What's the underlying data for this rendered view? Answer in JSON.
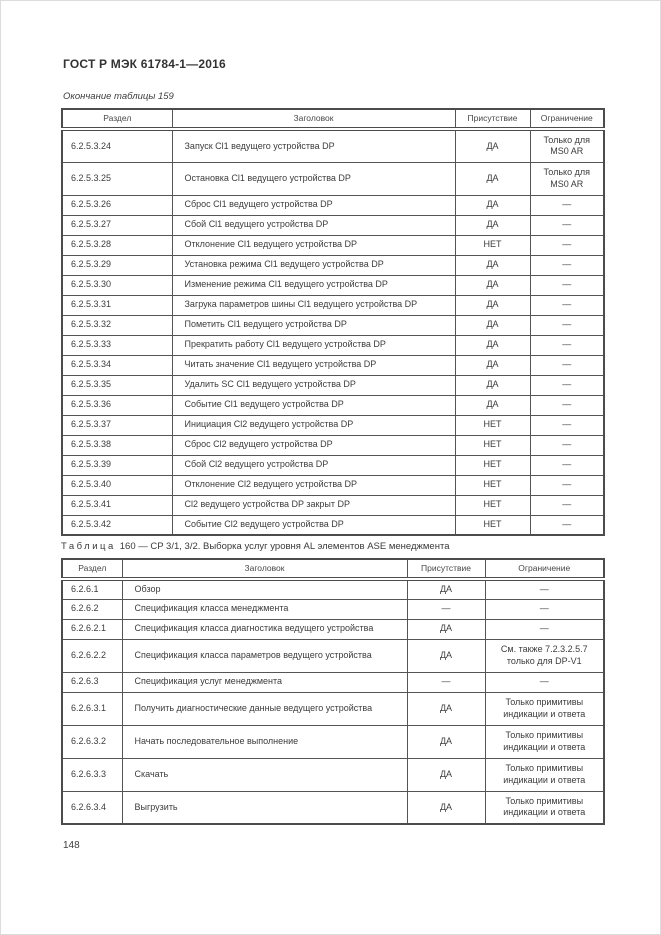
{
  "doc": {
    "title": "ГОСТ Р МЭК 61784-1—2016",
    "page_number": "148"
  },
  "table159": {
    "caption": "Окончание таблицы 159",
    "columns": [
      "Раздел",
      "Заголовок",
      "Присутствие",
      "Ограничение"
    ],
    "rows": [
      {
        "section": "6.2.5.3.24",
        "title": "Запуск Cl1 ведущего устройства DP",
        "presence": "ДА",
        "restriction": "Только для MS0 AR"
      },
      {
        "section": "6.2.5.3.25",
        "title": "Остановка Cl1 ведущего устройства DP",
        "presence": "ДА",
        "restriction": "Только для MS0 AR"
      },
      {
        "section": "6.2.5.3.26",
        "title": "Сброс Cl1 ведущего устройства DP",
        "presence": "ДА",
        "restriction": "—"
      },
      {
        "section": "6.2.5.3.27",
        "title": "Сбой Cl1 ведущего устройства DP",
        "presence": "ДА",
        "restriction": "—"
      },
      {
        "section": "6.2.5.3.28",
        "title": "Отклонение Cl1 ведущего устройства DP",
        "presence": "НЕТ",
        "restriction": "—"
      },
      {
        "section": "6.2.5.3.29",
        "title": "Установка режима Cl1 ведущего устройства DP",
        "presence": "ДА",
        "restriction": "—"
      },
      {
        "section": "6.2.5.3.30",
        "title": "Изменение режима Cl1 ведущего устройства DP",
        "presence": "ДА",
        "restriction": "—"
      },
      {
        "section": "6.2.5.3.31",
        "title": "Загрука параметров шины Cl1 ведущего устройства DP",
        "presence": "ДА",
        "restriction": "—"
      },
      {
        "section": "6.2.5.3.32",
        "title": "Пометить Cl1 ведущего устройства DP",
        "presence": "ДА",
        "restriction": "—"
      },
      {
        "section": "6.2.5.3.33",
        "title": "Прекратить работу Cl1 ведущего устройства DP",
        "presence": "ДА",
        "restriction": "—"
      },
      {
        "section": "6.2.5.3.34",
        "title": "Читать значение Cl1 ведущего устройства DP",
        "presence": "ДА",
        "restriction": "—"
      },
      {
        "section": "6.2.5.3.35",
        "title": "Удалить SC Cl1 ведущего устройства DP",
        "presence": "ДА",
        "restriction": "—"
      },
      {
        "section": "6.2.5.3.36",
        "title": "Событие Cl1 ведущего устройства DP",
        "presence": "ДА",
        "restriction": "—"
      },
      {
        "section": "6.2.5.3.37",
        "title": "Инициация Cl2 ведущего устройства DP",
        "presence": "НЕТ",
        "restriction": "—"
      },
      {
        "section": "6.2.5.3.38",
        "title": "Сброс Cl2 ведущего устройства DP",
        "presence": "НЕТ",
        "restriction": "—"
      },
      {
        "section": "6.2.5.3.39",
        "title": "Сбой Cl2 ведущего устройства DP",
        "presence": "НЕТ",
        "restriction": "—"
      },
      {
        "section": "6.2.5.3.40",
        "title": "Отклонение Cl2 ведущего устройства DP",
        "presence": "НЕТ",
        "restriction": "—"
      },
      {
        "section": "6.2.5.3.41",
        "title": "Cl2 ведущего устройства DP закрыт DP",
        "presence": "НЕТ",
        "restriction": "—"
      },
      {
        "section": "6.2.5.3.42",
        "title": "Событие Cl2 ведущего устройства DP",
        "presence": "НЕТ",
        "restriction": "—"
      }
    ]
  },
  "table160": {
    "caption_word": "Таблица",
    "caption_text": "160 — CP 3/1, 3/2. Выборка услуг уровня AL элементов ASE менеджмента",
    "columns": [
      "Раздел",
      "Заголовок",
      "Присутствие",
      "Ограничение"
    ],
    "rows": [
      {
        "section": "6.2.6.1",
        "title": "Обзор",
        "presence": "ДА",
        "restriction": "—"
      },
      {
        "section": "6.2.6.2",
        "title": "Спецификация класса менеджмента",
        "presence": "—",
        "restriction": "—"
      },
      {
        "section": "6.2.6.2.1",
        "title": "Спецификация класса диагностика ведущего устройства",
        "presence": "ДА",
        "restriction": "—"
      },
      {
        "section": "6.2.6.2.2",
        "title": "Спецификация класса параметров ведущего устройства",
        "presence": "ДА",
        "restriction": "См. также 7.2.3.2.5.7 только для DP-V1"
      },
      {
        "section": "6.2.6.3",
        "title": "Спецификация услуг менеджмента",
        "presence": "—",
        "restriction": "—"
      },
      {
        "section": "6.2.6.3.1",
        "title": "Получить диагностические данные ведущего устройства",
        "presence": "ДА",
        "restriction": "Только примитивы индикации и ответа"
      },
      {
        "section": "6.2.6.3.2",
        "title": "Начать последовательное выполнение",
        "presence": "ДА",
        "restriction": "Только примитивы индикации и ответа"
      },
      {
        "section": "6.2.6.3.3",
        "title": "Скачать",
        "presence": "ДА",
        "restriction": "Только примитивы индикации и ответа"
      },
      {
        "section": "6.2.6.3.4",
        "title": "Выгрузить",
        "presence": "ДА",
        "restriction": "Только примитивы индикации и ответа"
      }
    ]
  }
}
